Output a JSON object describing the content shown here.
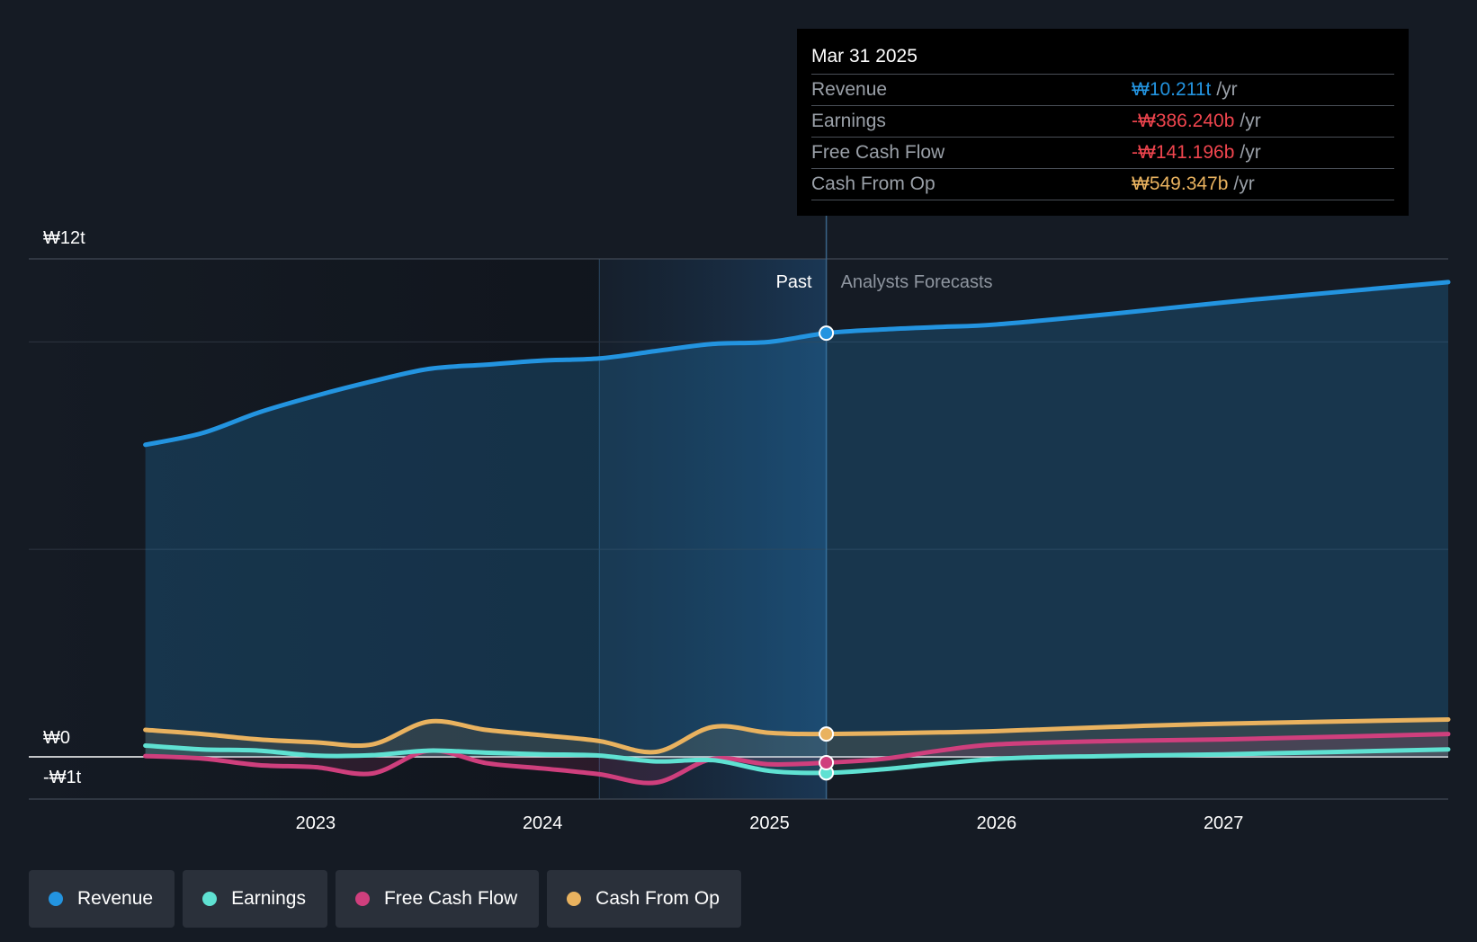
{
  "colors": {
    "revenue": "#2394e0",
    "earnings": "#5fe1d2",
    "fcf": "#cf3f7d",
    "cfo": "#e9b25f",
    "negative_value": "#f0454e",
    "background": "#151b24"
  },
  "tooltip": {
    "date": "Mar 31 2025",
    "rows": [
      {
        "label": "Revenue",
        "value": "₩10.211t",
        "unit": "/yr",
        "color": "#2394e0"
      },
      {
        "label": "Earnings",
        "value": "-₩386.240b",
        "unit": "/yr",
        "color": "#f0454e"
      },
      {
        "label": "Free Cash Flow",
        "value": "-₩141.196b",
        "unit": "/yr",
        "color": "#f0454e"
      },
      {
        "label": "Cash From Op",
        "value": "₩549.347b",
        "unit": "/yr",
        "color": "#e9b25f"
      }
    ]
  },
  "legend": [
    {
      "label": "Revenue",
      "icon": "dot",
      "color": "#2394e0"
    },
    {
      "label": "Earnings",
      "icon": "dot",
      "color": "#5fe1d2"
    },
    {
      "label": "Free Cash Flow",
      "icon": "dot",
      "color": "#cf3f7d"
    },
    {
      "label": "Cash From Op",
      "icon": "dot",
      "color": "#e9b25f"
    }
  ],
  "chart_data": {
    "type": "line",
    "y_axis_labels": [
      "₩12t",
      "₩0",
      "-₩1t"
    ],
    "ylim": [
      -1,
      12
    ],
    "x_ticks": [
      {
        "label": "2023",
        "x": 2023.0
      },
      {
        "label": "2024",
        "x": 2024.0
      },
      {
        "label": "2025",
        "x": 2025.0
      },
      {
        "label": "2026",
        "x": 2026.0
      },
      {
        "label": "2027",
        "x": 2027.0
      }
    ],
    "xlim": [
      2021.99,
      2027.99
    ],
    "period_labels": {
      "past": "Past",
      "forecast": "Analysts Forecasts"
    },
    "highlight_range": [
      2024.25,
      2025.25
    ],
    "divider_x": 2025.25,
    "grid": true,
    "series": [
      {
        "name": "Revenue",
        "key": "revenue",
        "color": "#2394e0",
        "area": true,
        "x": [
          2022.25,
          2022.5,
          2022.75,
          2023.0,
          2023.25,
          2023.5,
          2023.75,
          2024.0,
          2024.25,
          2024.5,
          2024.75,
          2025.0,
          2025.25,
          2025.5,
          2025.75,
          2026.0,
          2026.5,
          2027.0,
          2027.5,
          2027.99
        ],
        "y": [
          7.52,
          7.8,
          8.3,
          8.7,
          9.05,
          9.35,
          9.45,
          9.55,
          9.6,
          9.78,
          9.95,
          10.0,
          10.211,
          10.3,
          10.36,
          10.42,
          10.67,
          10.95,
          11.2,
          11.44
        ]
      },
      {
        "name": "Earnings",
        "key": "earnings",
        "color": "#5fe1d2",
        "area": true,
        "x": [
          2022.25,
          2022.5,
          2022.75,
          2023.0,
          2023.25,
          2023.5,
          2023.75,
          2024.0,
          2024.25,
          2024.5,
          2024.75,
          2025.0,
          2025.25,
          2025.5,
          2026.0,
          2026.5,
          2027.0,
          2027.99
        ],
        "y": [
          0.27,
          0.18,
          0.15,
          0.03,
          0.04,
          0.15,
          0.1,
          0.06,
          0.03,
          -0.11,
          -0.08,
          -0.34,
          -0.386,
          -0.3,
          -0.05,
          0.02,
          0.06,
          0.18
        ]
      },
      {
        "name": "Free Cash Flow",
        "key": "fcf",
        "color": "#cf3f7d",
        "area": true,
        "x": [
          2022.25,
          2022.5,
          2022.75,
          2023.0,
          2023.25,
          2023.5,
          2023.75,
          2024.0,
          2024.25,
          2024.5,
          2024.75,
          2025.0,
          2025.25,
          2025.5,
          2025.75,
          2026.0,
          2026.5,
          2027.0,
          2027.99
        ],
        "y": [
          0.02,
          -0.04,
          -0.2,
          -0.25,
          -0.4,
          0.15,
          -0.15,
          -0.28,
          -0.42,
          -0.62,
          -0.05,
          -0.18,
          -0.141,
          -0.05,
          0.15,
          0.3,
          0.38,
          0.42,
          0.55
        ]
      },
      {
        "name": "Cash From Op",
        "key": "cfo",
        "color": "#e9b25f",
        "area": true,
        "x": [
          2022.25,
          2022.5,
          2022.75,
          2023.0,
          2023.25,
          2023.5,
          2023.75,
          2024.0,
          2024.25,
          2024.5,
          2024.75,
          2025.0,
          2025.25,
          2025.75,
          2026.0,
          2026.5,
          2027.0,
          2027.99
        ],
        "y": [
          0.65,
          0.55,
          0.42,
          0.35,
          0.3,
          0.85,
          0.65,
          0.52,
          0.38,
          0.12,
          0.72,
          0.58,
          0.549,
          0.59,
          0.62,
          0.72,
          0.8,
          0.9
        ]
      }
    ],
    "highlight_points": [
      {
        "series": "Revenue",
        "x": 2025.25,
        "y": 10.211
      },
      {
        "series": "Earnings",
        "x": 2025.25,
        "y": -0.386
      },
      {
        "series": "Free Cash Flow",
        "x": 2025.25,
        "y": -0.141
      },
      {
        "series": "Cash From Op",
        "x": 2025.25,
        "y": 0.549
      }
    ]
  }
}
